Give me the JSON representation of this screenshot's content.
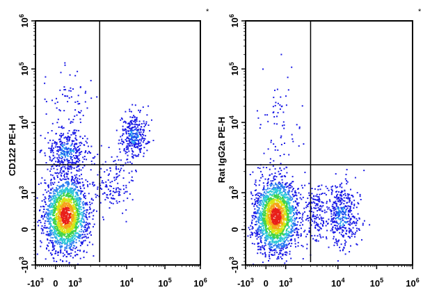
{
  "chart_data": [
    {
      "type": "scatter",
      "subtype": "flow-cytometry-density-dot-plot",
      "ylabel": "CD122 PE-H",
      "xlabel": "",
      "corner_mark": "*",
      "xlim": [
        -1000,
        1000000
      ],
      "ylim": [
        -1000,
        1000000
      ],
      "x_ticks": [
        {
          "value": -1000,
          "base": "-10",
          "exp": "3"
        },
        {
          "value": 0,
          "base": "0",
          "exp": ""
        },
        {
          "value": 1000,
          "base": "10",
          "exp": "3"
        },
        {
          "value": 10000,
          "base": "10",
          "exp": "4"
        },
        {
          "value": 100000,
          "base": "10",
          "exp": "5"
        },
        {
          "value": 1000000,
          "base": "10",
          "exp": "6"
        }
      ],
      "y_ticks": [
        {
          "value": -1000,
          "base": "-10",
          "exp": "3"
        },
        {
          "value": 0,
          "base": "0",
          "exp": ""
        },
        {
          "value": 1000,
          "base": "10",
          "exp": "3"
        },
        {
          "value": 10000,
          "base": "10",
          "exp": "4"
        },
        {
          "value": 100000,
          "base": "10",
          "exp": "5"
        },
        {
          "value": 1000000,
          "base": "10",
          "exp": "6"
        }
      ],
      "quadrant_gate": {
        "x": 3000,
        "y": 2500
      },
      "populations": [
        {
          "name": "double-negative",
          "x": 500,
          "y": 400,
          "x_range": [
            -500,
            1900
          ],
          "y_range": [
            -700,
            1600
          ],
          "n": 1900,
          "dense": true
        },
        {
          "name": "CD122+ low-x",
          "x": 550,
          "y": 4000,
          "x_range": [
            -200,
            2200
          ],
          "y_range": [
            1800,
            9000
          ],
          "n": 380,
          "dense": false
        },
        {
          "name": "CD122+ high-x",
          "x": 15000,
          "y": 6500,
          "x_range": [
            7000,
            30000
          ],
          "y_range": [
            3000,
            13000
          ],
          "n": 320,
          "dense": false
        },
        {
          "name": "bridge",
          "x": 5000,
          "y": 1500,
          "x_range": [
            2000,
            20000
          ],
          "y_range": [
            200,
            4000
          ],
          "n": 160,
          "dense": false
        },
        {
          "name": "sparse-high",
          "x": 600,
          "y": 30000,
          "x_range": [
            0,
            3000
          ],
          "y_range": [
            10000,
            200000
          ],
          "n": 60,
          "dense": false
        }
      ]
    },
    {
      "type": "scatter",
      "subtype": "flow-cytometry-density-dot-plot",
      "ylabel": "Rat IgG2a PE-H",
      "xlabel": "",
      "corner_mark": "*",
      "xlim": [
        -1000,
        1000000
      ],
      "ylim": [
        -1000,
        1000000
      ],
      "x_ticks": [
        {
          "value": -1000,
          "base": "-10",
          "exp": "3"
        },
        {
          "value": 0,
          "base": "0",
          "exp": ""
        },
        {
          "value": 1000,
          "base": "10",
          "exp": "3"
        },
        {
          "value": 10000,
          "base": "10",
          "exp": "4"
        },
        {
          "value": 100000,
          "base": "10",
          "exp": "5"
        },
        {
          "value": 1000000,
          "base": "10",
          "exp": "6"
        }
      ],
      "y_ticks": [
        {
          "value": -1000,
          "base": "-10",
          "exp": "3"
        },
        {
          "value": 0,
          "base": "0",
          "exp": ""
        },
        {
          "value": 1000,
          "base": "10",
          "exp": "3"
        },
        {
          "value": 10000,
          "base": "10",
          "exp": "4"
        },
        {
          "value": 100000,
          "base": "10",
          "exp": "5"
        },
        {
          "value": 1000000,
          "base": "10",
          "exp": "6"
        }
      ],
      "quadrant_gate": {
        "x": 3000,
        "y": 2500
      },
      "populations": [
        {
          "name": "double-negative",
          "x": 480,
          "y": 380,
          "x_range": [
            -500,
            1900
          ],
          "y_range": [
            -700,
            1500
          ],
          "n": 2000,
          "dense": true
        },
        {
          "name": "isotype high-x",
          "x": 12000,
          "y": 400,
          "x_range": [
            5000,
            30000
          ],
          "y_range": [
            -300,
            1600
          ],
          "n": 420,
          "dense": false
        },
        {
          "name": "bridge",
          "x": 4000,
          "y": 400,
          "x_range": [
            2500,
            8000
          ],
          "y_range": [
            -300,
            1300
          ],
          "n": 160,
          "dense": false
        },
        {
          "name": "sparse-high",
          "x": 700,
          "y": 10000,
          "x_range": [
            0,
            3000
          ],
          "y_range": [
            2000,
            100000
          ],
          "n": 70,
          "dense": false
        }
      ]
    }
  ]
}
